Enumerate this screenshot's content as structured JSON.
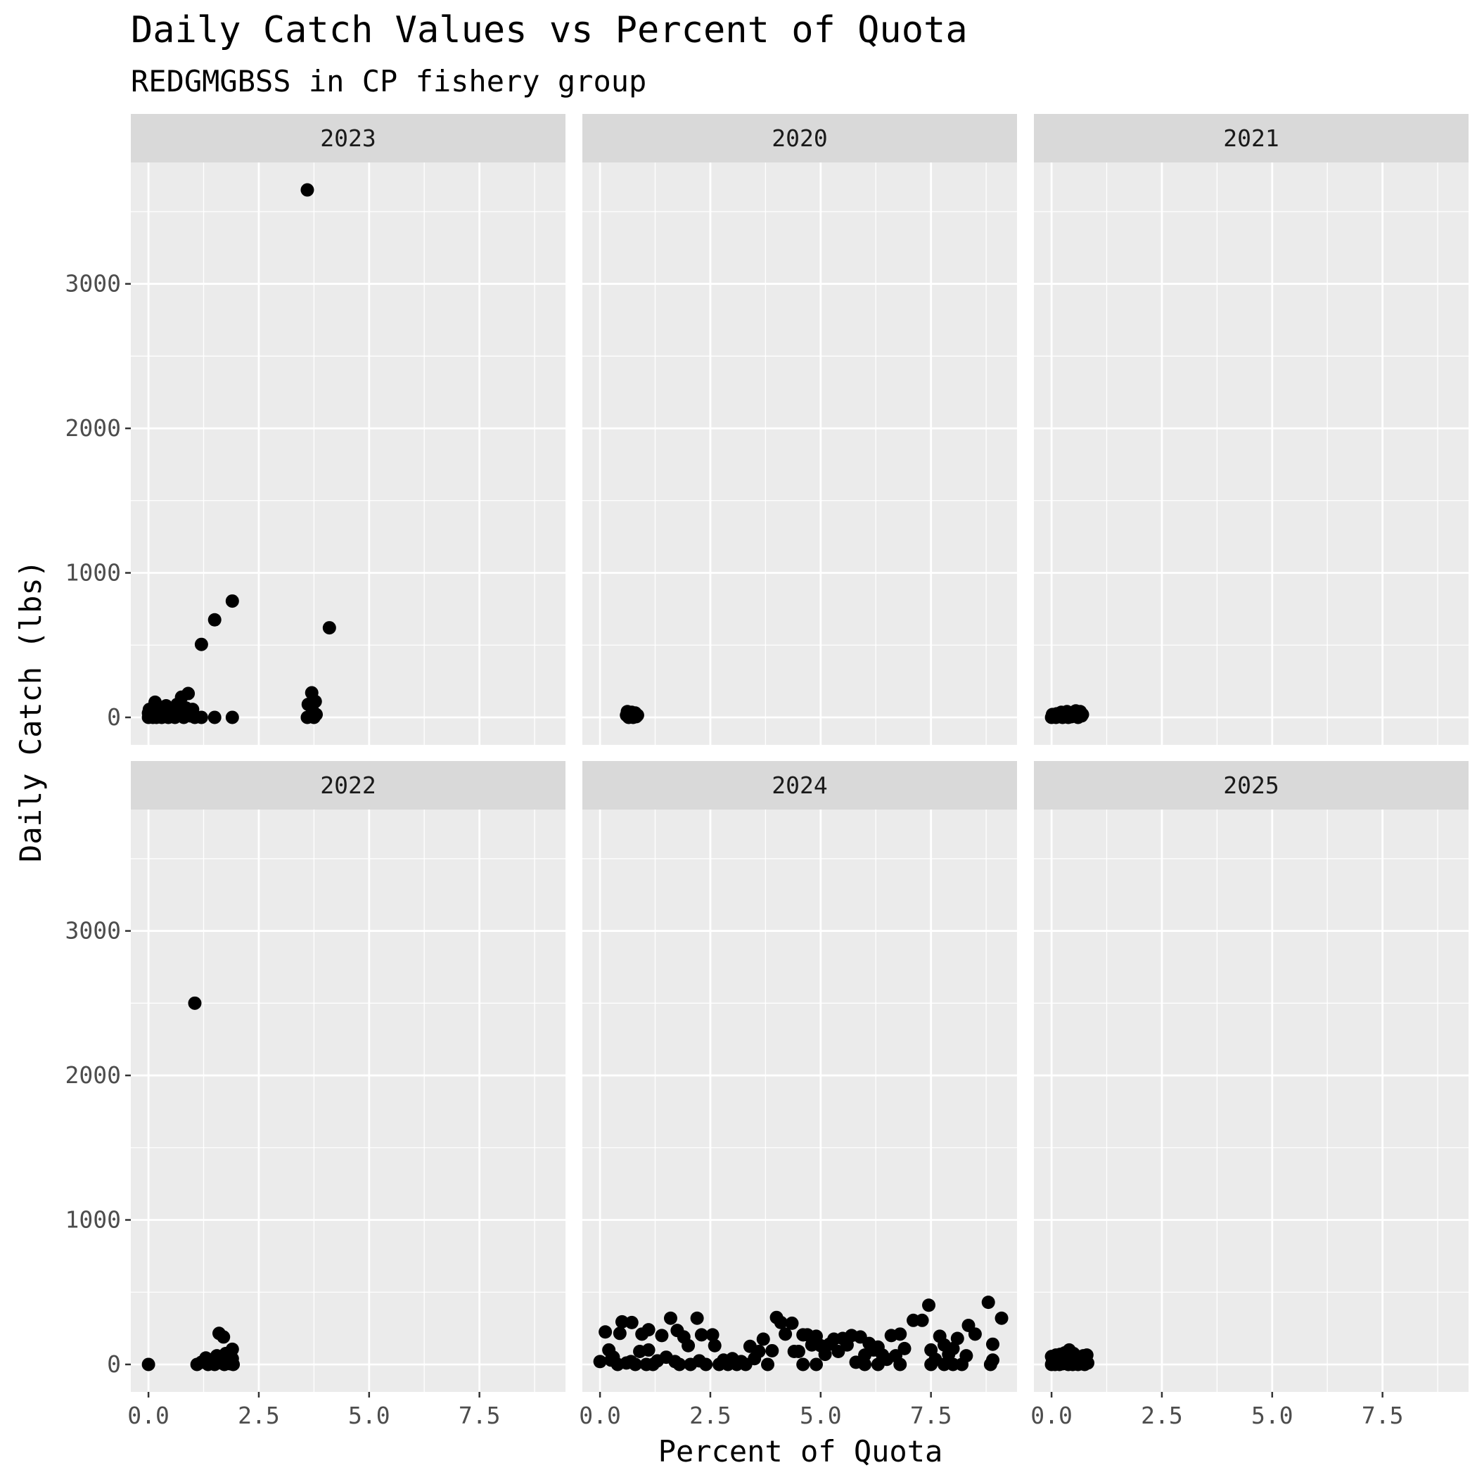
{
  "chart_data": {
    "type": "scatter",
    "title": "Daily Catch Values vs Percent of Quota",
    "subtitle": "REDGMGBSS in CP fishery group",
    "xlabel": "Percent of Quota",
    "ylabel": "Daily Catch (lbs)",
    "xlim": [
      -0.4,
      9.45
    ],
    "ylim": [
      -190,
      3840
    ],
    "x_ticks": [
      0.0,
      2.5,
      5.0,
      7.5
    ],
    "x_tick_labels": [
      "0.0",
      "2.5",
      "5.0",
      "7.5"
    ],
    "y_ticks": [
      0,
      1000,
      2000,
      3000
    ],
    "y_tick_labels": [
      "0",
      "1000",
      "2000",
      "3000"
    ],
    "grid": true,
    "layout": "facet_wrap 2 rows x 3 columns, shared axes",
    "colors": {
      "panel_background": "#ebebeb",
      "strip_background": "#d9d9d9",
      "grid": "#ffffff",
      "point": "#000000"
    },
    "panels": [
      {
        "label": "2023",
        "points": [
          [
            0.0,
            0
          ],
          [
            0.0,
            30
          ],
          [
            0.02,
            55
          ],
          [
            0.05,
            10
          ],
          [
            0.1,
            0
          ],
          [
            0.12,
            40
          ],
          [
            0.15,
            105
          ],
          [
            0.18,
            0
          ],
          [
            0.2,
            20
          ],
          [
            0.25,
            60
          ],
          [
            0.3,
            0
          ],
          [
            0.35,
            35
          ],
          [
            0.4,
            80
          ],
          [
            0.45,
            0
          ],
          [
            0.5,
            15
          ],
          [
            0.55,
            50
          ],
          [
            0.6,
            0
          ],
          [
            0.65,
            90
          ],
          [
            0.7,
            25
          ],
          [
            0.75,
            140
          ],
          [
            0.8,
            0
          ],
          [
            0.85,
            65
          ],
          [
            0.9,
            165
          ],
          [
            0.95,
            10
          ],
          [
            1.0,
            55
          ],
          [
            1.05,
            0
          ],
          [
            1.2,
            0
          ],
          [
            1.2,
            505
          ],
          [
            1.5,
            675
          ],
          [
            1.5,
            0
          ],
          [
            1.9,
            805
          ],
          [
            1.9,
            0
          ],
          [
            3.6,
            3650
          ],
          [
            3.6,
            0
          ],
          [
            3.62,
            90
          ],
          [
            3.7,
            170
          ],
          [
            3.72,
            45
          ],
          [
            3.75,
            0
          ],
          [
            3.78,
            110
          ],
          [
            3.8,
            20
          ],
          [
            4.1,
            620
          ]
        ]
      },
      {
        "label": "2020",
        "points": [
          [
            0.6,
            15
          ],
          [
            0.62,
            40
          ],
          [
            0.65,
            0
          ],
          [
            0.68,
            25
          ],
          [
            0.7,
            10
          ],
          [
            0.72,
            35
          ],
          [
            0.75,
            0
          ],
          [
            0.78,
            20
          ],
          [
            0.8,
            30
          ],
          [
            0.82,
            5
          ],
          [
            0.85,
            15
          ]
        ]
      },
      {
        "label": "2021",
        "points": [
          [
            0.0,
            0
          ],
          [
            0.02,
            20
          ],
          [
            0.05,
            10
          ],
          [
            0.1,
            0
          ],
          [
            0.12,
            25
          ],
          [
            0.15,
            5
          ],
          [
            0.2,
            15
          ],
          [
            0.22,
            35
          ],
          [
            0.25,
            0
          ],
          [
            0.28,
            30
          ],
          [
            0.3,
            10
          ],
          [
            0.35,
            40
          ],
          [
            0.38,
            0
          ],
          [
            0.4,
            20
          ],
          [
            0.45,
            5
          ],
          [
            0.5,
            35
          ],
          [
            0.52,
            15
          ],
          [
            0.55,
            45
          ],
          [
            0.6,
            0
          ],
          [
            0.62,
            25
          ],
          [
            0.65,
            40
          ],
          [
            0.68,
            10
          ],
          [
            0.7,
            20
          ]
        ]
      },
      {
        "label": "2022",
        "points": [
          [
            0.0,
            0
          ],
          [
            1.05,
            2500
          ],
          [
            1.1,
            0
          ],
          [
            1.2,
            15
          ],
          [
            1.3,
            45
          ],
          [
            1.35,
            0
          ],
          [
            1.45,
            25
          ],
          [
            1.5,
            0
          ],
          [
            1.55,
            60
          ],
          [
            1.6,
            215
          ],
          [
            1.65,
            10
          ],
          [
            1.7,
            190
          ],
          [
            1.72,
            0
          ],
          [
            1.75,
            75
          ],
          [
            1.8,
            30
          ],
          [
            1.85,
            5
          ],
          [
            1.9,
            105
          ],
          [
            1.9,
            40
          ],
          [
            1.92,
            0
          ]
        ]
      },
      {
        "label": "2024",
        "points": [
          [
            0.0,
            20
          ],
          [
            0.12,
            225
          ],
          [
            0.2,
            100
          ],
          [
            0.25,
            30
          ],
          [
            0.3,
            50
          ],
          [
            0.4,
            0
          ],
          [
            0.45,
            215
          ],
          [
            0.5,
            295
          ],
          [
            0.6,
            10
          ],
          [
            0.7,
            20
          ],
          [
            0.72,
            290
          ],
          [
            0.8,
            0
          ],
          [
            0.9,
            90
          ],
          [
            0.95,
            210
          ],
          [
            1.05,
            0
          ],
          [
            1.1,
            100
          ],
          [
            1.1,
            240
          ],
          [
            1.2,
            0
          ],
          [
            1.3,
            25
          ],
          [
            1.4,
            200
          ],
          [
            1.5,
            50
          ],
          [
            1.6,
            320
          ],
          [
            1.7,
            20
          ],
          [
            1.75,
            235
          ],
          [
            1.8,
            0
          ],
          [
            1.9,
            190
          ],
          [
            2.0,
            130
          ],
          [
            2.05,
            0
          ],
          [
            2.2,
            320
          ],
          [
            2.25,
            25
          ],
          [
            2.3,
            205
          ],
          [
            2.4,
            0
          ],
          [
            2.55,
            205
          ],
          [
            2.6,
            130
          ],
          [
            2.7,
            0
          ],
          [
            2.8,
            30
          ],
          [
            2.9,
            0
          ],
          [
            3.0,
            40
          ],
          [
            3.1,
            0
          ],
          [
            3.2,
            20
          ],
          [
            3.3,
            0
          ],
          [
            3.4,
            125
          ],
          [
            3.5,
            40
          ],
          [
            3.6,
            90
          ],
          [
            3.7,
            175
          ],
          [
            3.8,
            0
          ],
          [
            3.9,
            95
          ],
          [
            4.0,
            325
          ],
          [
            4.1,
            290
          ],
          [
            4.2,
            210
          ],
          [
            4.35,
            285
          ],
          [
            4.4,
            90
          ],
          [
            4.5,
            90
          ],
          [
            4.6,
            0
          ],
          [
            4.6,
            205
          ],
          [
            4.7,
            205
          ],
          [
            4.8,
            135
          ],
          [
            4.9,
            0
          ],
          [
            4.9,
            195
          ],
          [
            5.0,
            130
          ],
          [
            5.1,
            70
          ],
          [
            5.2,
            140
          ],
          [
            5.3,
            175
          ],
          [
            5.4,
            90
          ],
          [
            5.5,
            180
          ],
          [
            5.6,
            135
          ],
          [
            5.7,
            200
          ],
          [
            5.8,
            15
          ],
          [
            5.9,
            190
          ],
          [
            6.0,
            65
          ],
          [
            6.0,
            0
          ],
          [
            6.1,
            145
          ],
          [
            6.2,
            100
          ],
          [
            6.3,
            0
          ],
          [
            6.3,
            120
          ],
          [
            6.4,
            65
          ],
          [
            6.5,
            35
          ],
          [
            6.6,
            200
          ],
          [
            6.7,
            60
          ],
          [
            6.8,
            0
          ],
          [
            6.8,
            210
          ],
          [
            6.9,
            110
          ],
          [
            7.1,
            305
          ],
          [
            7.3,
            305
          ],
          [
            7.45,
            410
          ],
          [
            7.5,
            0
          ],
          [
            7.5,
            100
          ],
          [
            7.6,
            35
          ],
          [
            7.7,
            195
          ],
          [
            7.8,
            0
          ],
          [
            7.8,
            135
          ],
          [
            7.9,
            70
          ],
          [
            8.0,
            0
          ],
          [
            8.0,
            110
          ],
          [
            8.1,
            180
          ],
          [
            8.2,
            0
          ],
          [
            8.3,
            60
          ],
          [
            8.35,
            270
          ],
          [
            8.5,
            210
          ],
          [
            8.8,
            430
          ],
          [
            8.85,
            0
          ],
          [
            8.9,
            140
          ],
          [
            8.9,
            30
          ],
          [
            9.1,
            320
          ]
        ]
      },
      {
        "label": "2025",
        "points": [
          [
            0.0,
            0
          ],
          [
            0.0,
            55
          ],
          [
            0.02,
            20
          ],
          [
            0.05,
            35
          ],
          [
            0.08,
            0
          ],
          [
            0.1,
            65
          ],
          [
            0.12,
            15
          ],
          [
            0.15,
            45
          ],
          [
            0.18,
            0
          ],
          [
            0.2,
            70
          ],
          [
            0.22,
            25
          ],
          [
            0.25,
            5
          ],
          [
            0.28,
            50
          ],
          [
            0.3,
            80
          ],
          [
            0.32,
            10
          ],
          [
            0.35,
            35
          ],
          [
            0.38,
            0
          ],
          [
            0.4,
            100
          ],
          [
            0.42,
            60
          ],
          [
            0.45,
            20
          ],
          [
            0.48,
            0
          ],
          [
            0.5,
            75
          ],
          [
            0.52,
            40
          ],
          [
            0.55,
            10
          ],
          [
            0.58,
            55
          ],
          [
            0.6,
            0
          ],
          [
            0.62,
            30
          ],
          [
            0.65,
            45
          ],
          [
            0.68,
            5
          ],
          [
            0.7,
            20
          ],
          [
            0.72,
            60
          ],
          [
            0.75,
            0
          ],
          [
            0.78,
            35
          ],
          [
            0.8,
            65
          ],
          [
            0.82,
            10
          ]
        ]
      }
    ]
  }
}
